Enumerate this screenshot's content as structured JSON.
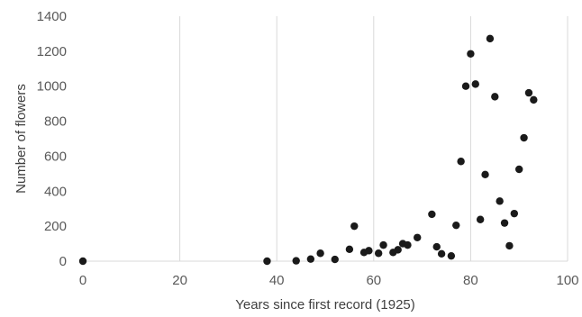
{
  "chart_data": {
    "type": "scatter",
    "xlabel": "Years since first record (1925)",
    "ylabel": "Number of flowers",
    "xlim": [
      0,
      100
    ],
    "ylim": [
      0,
      1400
    ],
    "xticks": [
      0,
      20,
      40,
      60,
      80,
      100
    ],
    "yticks": [
      0,
      200,
      400,
      600,
      800,
      1000,
      1200,
      1400
    ],
    "grid": "vertical",
    "point_color": "#1a1a1a",
    "series": [
      {
        "points": [
          [
            0,
            0
          ],
          [
            38,
            0
          ],
          [
            44,
            2
          ],
          [
            47,
            12
          ],
          [
            49,
            45
          ],
          [
            52,
            10
          ],
          [
            55,
            68
          ],
          [
            56,
            200
          ],
          [
            58,
            50
          ],
          [
            59,
            60
          ],
          [
            61,
            45
          ],
          [
            62,
            92
          ],
          [
            64,
            50
          ],
          [
            65,
            65
          ],
          [
            66,
            100
          ],
          [
            67,
            92
          ],
          [
            69,
            135
          ],
          [
            72,
            268
          ],
          [
            73,
            82
          ],
          [
            74,
            42
          ],
          [
            76,
            30
          ],
          [
            77,
            205
          ],
          [
            78,
            570
          ],
          [
            79,
            1000
          ],
          [
            80,
            1185
          ],
          [
            81,
            1012
          ],
          [
            82,
            238
          ],
          [
            83,
            495
          ],
          [
            84,
            1272
          ],
          [
            85,
            940
          ],
          [
            86,
            343
          ],
          [
            87,
            218
          ],
          [
            88,
            88
          ],
          [
            89,
            272
          ],
          [
            90,
            525
          ],
          [
            91,
            705
          ],
          [
            92,
            962
          ],
          [
            93,
            922
          ]
        ]
      }
    ]
  }
}
